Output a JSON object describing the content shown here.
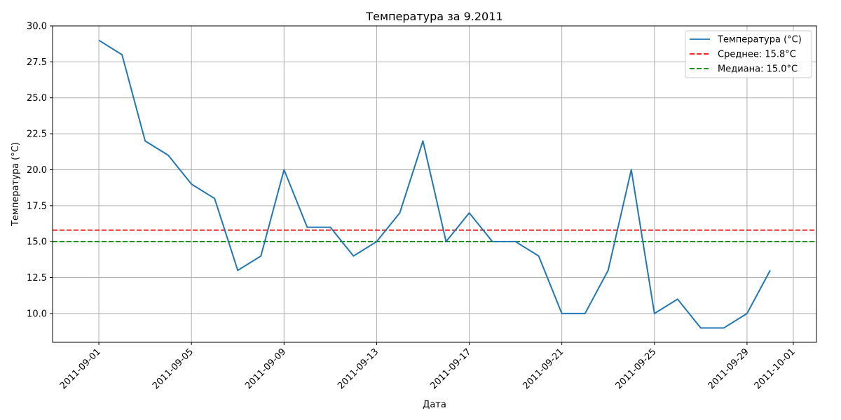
{
  "chart_data": {
    "type": "line",
    "title": "Температура за 9.2011",
    "xlabel": "Дата",
    "ylabel": "Температура (°C)",
    "x": [
      "2011-09-01",
      "2011-09-02",
      "2011-09-03",
      "2011-09-04",
      "2011-09-05",
      "2011-09-06",
      "2011-09-07",
      "2011-09-08",
      "2011-09-09",
      "2011-09-10",
      "2011-09-11",
      "2011-09-12",
      "2011-09-13",
      "2011-09-14",
      "2011-09-15",
      "2011-09-16",
      "2011-09-17",
      "2011-09-18",
      "2011-09-19",
      "2011-09-20",
      "2011-09-21",
      "2011-09-22",
      "2011-09-23",
      "2011-09-24",
      "2011-09-25",
      "2011-09-26",
      "2011-09-27",
      "2011-09-28",
      "2011-09-29",
      "2011-09-30"
    ],
    "series": [
      {
        "name": "Температура (°C)",
        "color": "#1f77b4",
        "values": [
          29,
          28,
          22,
          21,
          19,
          18,
          13,
          14,
          20,
          16,
          16,
          14,
          15,
          17,
          22,
          15,
          17,
          15,
          15,
          14,
          10,
          10,
          13,
          20,
          10,
          11,
          9,
          9,
          10,
          13
        ]
      }
    ],
    "reference_lines": [
      {
        "name": "Среднее: 15.8°C",
        "value": 15.8,
        "color": "#ff0000",
        "style": "dashed"
      },
      {
        "name": "Медиана: 15.0°C",
        "value": 15.0,
        "color": "#008000",
        "style": "dashed"
      }
    ],
    "xlim": [
      "2011-08-30",
      "2011-10-02"
    ],
    "ylim": [
      8,
      30
    ],
    "xticks": [
      "2011-09-01",
      "2011-09-05",
      "2011-09-09",
      "2011-09-13",
      "2011-09-17",
      "2011-09-21",
      "2011-09-25",
      "2011-09-29",
      "2011-10-01"
    ],
    "yticks": [
      "10.0",
      "12.5",
      "15.0",
      "17.5",
      "20.0",
      "22.5",
      "25.0",
      "27.5",
      "30.0"
    ],
    "grid": true,
    "legend_position": "top-right"
  }
}
